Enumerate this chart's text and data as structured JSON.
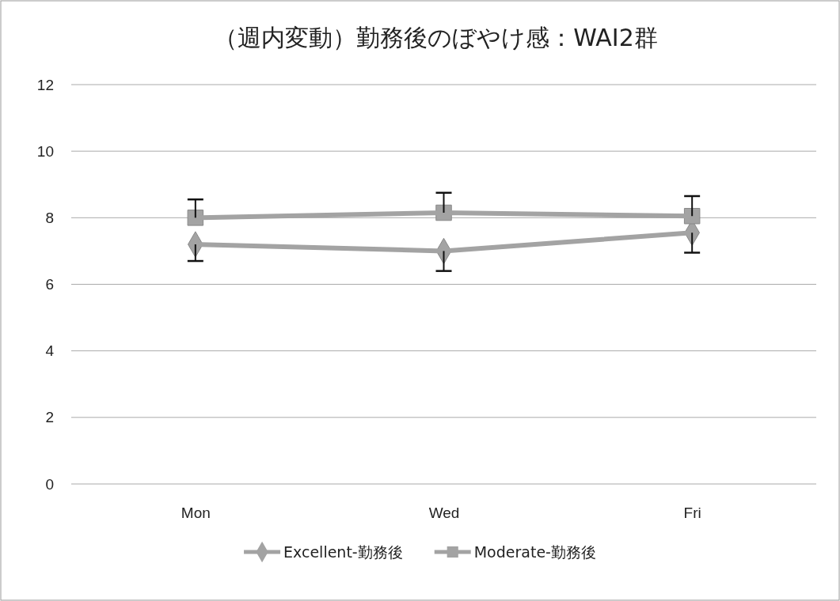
{
  "chart_data": {
    "type": "line",
    "title": "（週内変動）勤務後のぼやけ感：WAI2群",
    "categories": [
      "Mon",
      "Wed",
      "Fri"
    ],
    "series": [
      {
        "name": "Excellent-勤務後",
        "color": "#a3a3a3",
        "marker": "diamond",
        "values": [
          7.2,
          7.0,
          7.55
        ],
        "errors": [
          [
            6.7,
            7.2
          ],
          [
            6.4,
            7.0
          ],
          [
            6.95,
            7.55
          ]
        ]
      },
      {
        "name": "Moderate-勤務後",
        "color": "#a3a3a3",
        "marker": "square",
        "values": [
          8.0,
          8.15,
          8.05
        ],
        "errors": [
          [
            8.0,
            8.55
          ],
          [
            8.15,
            8.75
          ],
          [
            8.05,
            8.65
          ]
        ]
      }
    ],
    "ylim": [
      0,
      12
    ],
    "yticks": [
      0,
      2,
      4,
      6,
      8,
      10,
      12
    ],
    "grid": "y",
    "legend": "bottom",
    "line_style": "solid"
  }
}
